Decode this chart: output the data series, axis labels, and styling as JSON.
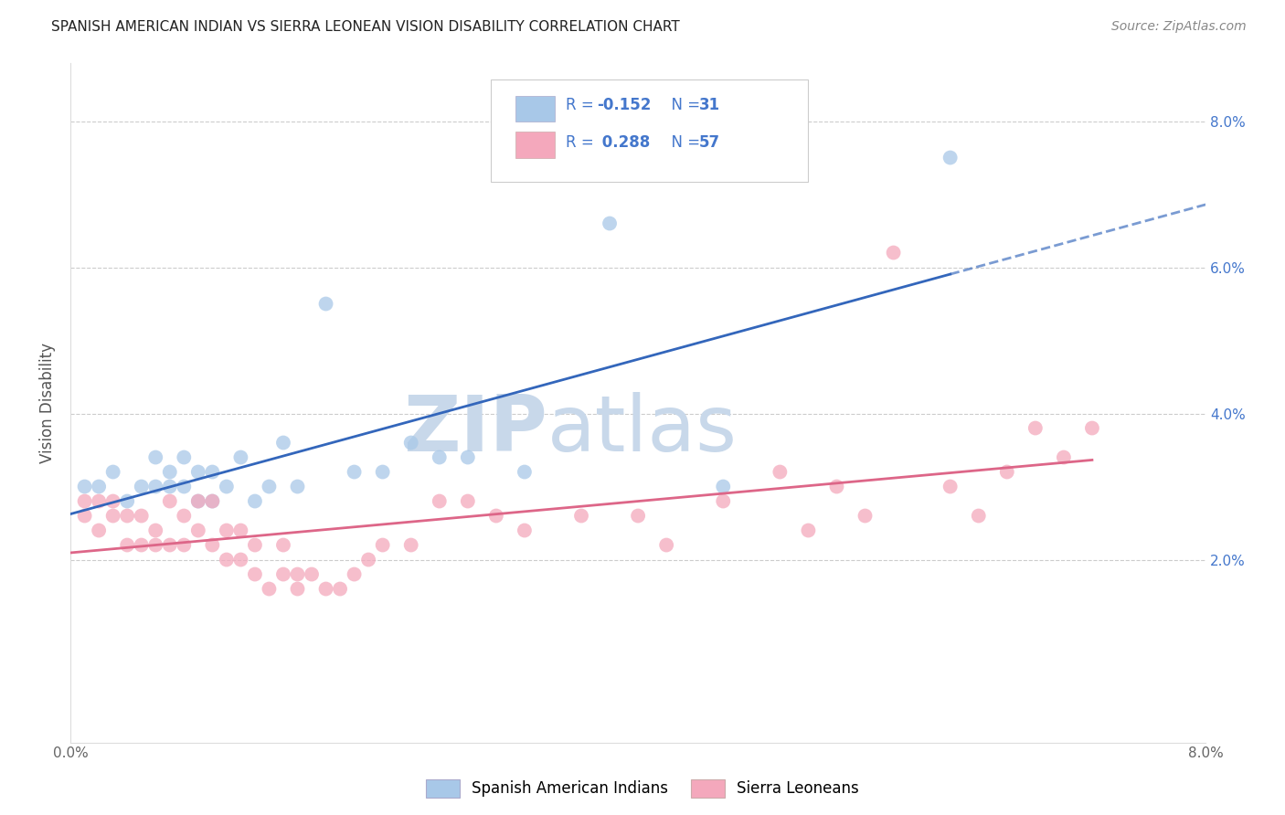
{
  "title": "SPANISH AMERICAN INDIAN VS SIERRA LEONEAN VISION DISABILITY CORRELATION CHART",
  "source": "Source: ZipAtlas.com",
  "ylabel": "Vision Disability",
  "xlim": [
    0.0,
    0.08
  ],
  "ylim": [
    -0.005,
    0.088
  ],
  "blue_R": -0.152,
  "blue_N": 31,
  "pink_R": 0.288,
  "pink_N": 57,
  "blue_color": "#a8c8e8",
  "pink_color": "#f4a8bc",
  "blue_line_color": "#3366bb",
  "pink_line_color": "#dd6688",
  "watermark_ZIP_color": "#c8d8e8",
  "watermark_atlas_color": "#c8d8e8",
  "background_color": "#ffffff",
  "blue_points_x": [
    0.001,
    0.002,
    0.003,
    0.004,
    0.005,
    0.006,
    0.006,
    0.007,
    0.007,
    0.008,
    0.008,
    0.009,
    0.009,
    0.01,
    0.01,
    0.011,
    0.012,
    0.013,
    0.014,
    0.015,
    0.016,
    0.018,
    0.02,
    0.022,
    0.024,
    0.026,
    0.028,
    0.032,
    0.038,
    0.046,
    0.062
  ],
  "blue_points_y": [
    0.03,
    0.03,
    0.032,
    0.028,
    0.03,
    0.034,
    0.03,
    0.032,
    0.03,
    0.03,
    0.034,
    0.028,
    0.032,
    0.032,
    0.028,
    0.03,
    0.034,
    0.028,
    0.03,
    0.036,
    0.03,
    0.055,
    0.032,
    0.032,
    0.036,
    0.034,
    0.034,
    0.032,
    0.066,
    0.03,
    0.075
  ],
  "pink_points_x": [
    0.001,
    0.001,
    0.002,
    0.002,
    0.003,
    0.003,
    0.004,
    0.004,
    0.005,
    0.005,
    0.006,
    0.006,
    0.007,
    0.007,
    0.008,
    0.008,
    0.009,
    0.009,
    0.01,
    0.01,
    0.011,
    0.011,
    0.012,
    0.012,
    0.013,
    0.013,
    0.014,
    0.015,
    0.015,
    0.016,
    0.016,
    0.017,
    0.018,
    0.019,
    0.02,
    0.021,
    0.022,
    0.024,
    0.026,
    0.028,
    0.03,
    0.032,
    0.036,
    0.04,
    0.042,
    0.046,
    0.05,
    0.052,
    0.054,
    0.056,
    0.058,
    0.062,
    0.064,
    0.066,
    0.068,
    0.07,
    0.072
  ],
  "pink_points_y": [
    0.028,
    0.026,
    0.028,
    0.024,
    0.028,
    0.026,
    0.026,
    0.022,
    0.026,
    0.022,
    0.024,
    0.022,
    0.028,
    0.022,
    0.026,
    0.022,
    0.028,
    0.024,
    0.022,
    0.028,
    0.02,
    0.024,
    0.02,
    0.024,
    0.018,
    0.022,
    0.016,
    0.018,
    0.022,
    0.016,
    0.018,
    0.018,
    0.016,
    0.016,
    0.018,
    0.02,
    0.022,
    0.022,
    0.028,
    0.028,
    0.026,
    0.024,
    0.026,
    0.026,
    0.022,
    0.028,
    0.032,
    0.024,
    0.03,
    0.026,
    0.062,
    0.03,
    0.026,
    0.032,
    0.038,
    0.034,
    0.038
  ]
}
